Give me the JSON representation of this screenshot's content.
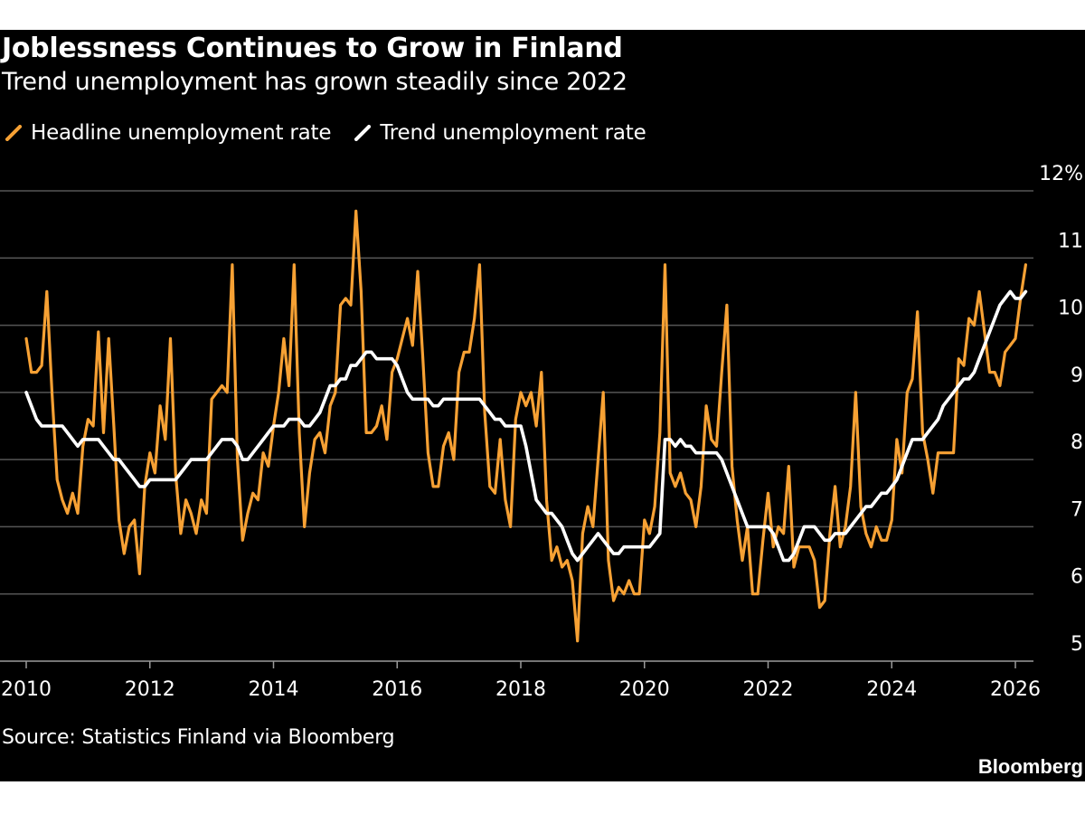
{
  "header": {
    "title": "Joblessness Continues to Grow in Finland",
    "subtitle": "Trend unemployment has grown steadily since 2022"
  },
  "footer": {
    "source": "Source: Statistics Finland via Bloomberg",
    "brand": "Bloomberg"
  },
  "colors": {
    "background": "#000000",
    "headline": "#f7a134",
    "trend": "#ffffff",
    "grid": "#555555",
    "text": "#ffffff"
  },
  "chart_data": {
    "type": "line",
    "title": "Joblessness Continues to Grow in Finland",
    "subtitle": "Trend unemployment has grown steadily since 2022",
    "xlabel": "",
    "ylabel": "%",
    "x_start": 2010.0,
    "x_step_months": 1,
    "xlim": [
      2010,
      2026.5
    ],
    "ylim": [
      5,
      12
    ],
    "y_ticks": [
      5,
      6,
      7,
      8,
      9,
      10,
      11,
      12
    ],
    "y_tick_labels": [
      "5",
      "6",
      "7",
      "8",
      "9",
      "10",
      "11",
      "12%"
    ],
    "x_ticks": [
      2010,
      2012,
      2014,
      2016,
      2018,
      2020,
      2022,
      2024,
      2026
    ],
    "x_tick_labels": [
      "2010",
      "2012",
      "2014",
      "2016",
      "2018",
      "2020",
      "2022",
      "2024",
      "2026"
    ],
    "grid": true,
    "legend_position": "top-left",
    "series": [
      {
        "name": "Headline unemployment rate",
        "color": "#f7a134",
        "values": [
          9.8,
          9.3,
          9.3,
          9.4,
          10.5,
          9.0,
          7.7,
          7.4,
          7.2,
          7.5,
          7.2,
          8.2,
          8.6,
          8.5,
          9.9,
          8.4,
          9.8,
          8.5,
          7.1,
          6.6,
          7.0,
          7.1,
          6.3,
          7.6,
          8.1,
          7.8,
          8.8,
          8.3,
          9.8,
          7.8,
          6.9,
          7.4,
          7.2,
          6.9,
          7.4,
          7.2,
          8.9,
          9.0,
          9.1,
          9.0,
          10.9,
          8.0,
          6.8,
          7.2,
          7.5,
          7.4,
          8.1,
          7.9,
          8.5,
          9.0,
          9.8,
          9.1,
          10.9,
          8.4,
          7.0,
          7.8,
          8.3,
          8.4,
          8.1,
          8.8,
          9.0,
          10.3,
          10.4,
          10.3,
          11.7,
          10.5,
          8.4,
          8.4,
          8.5,
          8.8,
          8.3,
          9.3,
          9.5,
          9.8,
          10.1,
          9.7,
          10.8,
          9.5,
          8.1,
          7.6,
          7.6,
          8.2,
          8.4,
          8.0,
          9.3,
          9.6,
          9.6,
          10.1,
          10.9,
          8.7,
          7.6,
          7.5,
          8.3,
          7.4,
          7.0,
          8.6,
          9.0,
          8.8,
          9.0,
          8.5,
          9.3,
          7.4,
          6.5,
          6.7,
          6.4,
          6.5,
          6.2,
          5.3,
          6.9,
          7.3,
          7.0,
          8.0,
          9.0,
          6.5,
          5.9,
          6.1,
          6.0,
          6.2,
          6.0,
          6.0,
          7.1,
          6.9,
          7.3,
          8.4,
          10.9,
          7.8,
          7.6,
          7.8,
          7.5,
          7.4,
          7.0,
          7.6,
          8.8,
          8.3,
          8.2,
          9.3,
          10.3,
          7.9,
          7.1,
          6.5,
          7.0,
          6.0,
          6.0,
          6.8,
          7.5,
          6.7,
          7.0,
          6.9,
          7.9,
          6.4,
          6.7,
          6.7,
          6.7,
          6.5,
          5.8,
          5.9,
          6.9,
          7.6,
          6.7,
          7.0,
          7.6,
          9.0,
          7.3,
          6.9,
          6.7,
          7.0,
          6.8,
          6.8,
          7.1,
          8.3,
          7.8,
          9.0,
          9.2,
          10.2,
          8.4,
          8.0,
          7.5,
          8.1,
          8.1,
          8.1,
          8.1,
          9.5,
          9.4,
          10.1,
          10.0,
          10.5,
          9.9,
          9.3,
          9.3,
          9.1,
          9.6,
          9.7,
          9.8,
          10.4,
          10.9
        ]
      },
      {
        "name": "Trend unemployment rate",
        "color": "#ffffff",
        "values": [
          9.0,
          8.8,
          8.6,
          8.5,
          8.5,
          8.5,
          8.5,
          8.5,
          8.4,
          8.3,
          8.2,
          8.3,
          8.3,
          8.3,
          8.3,
          8.2,
          8.1,
          8.0,
          8.0,
          7.9,
          7.8,
          7.7,
          7.6,
          7.6,
          7.7,
          7.7,
          7.7,
          7.7,
          7.7,
          7.7,
          7.8,
          7.9,
          8.0,
          8.0,
          8.0,
          8.0,
          8.1,
          8.2,
          8.3,
          8.3,
          8.3,
          8.2,
          8.0,
          8.0,
          8.1,
          8.2,
          8.3,
          8.4,
          8.5,
          8.5,
          8.5,
          8.6,
          8.6,
          8.6,
          8.5,
          8.5,
          8.6,
          8.7,
          8.9,
          9.1,
          9.1,
          9.2,
          9.2,
          9.4,
          9.4,
          9.5,
          9.6,
          9.6,
          9.5,
          9.5,
          9.5,
          9.5,
          9.4,
          9.2,
          9.0,
          8.9,
          8.9,
          8.9,
          8.9,
          8.8,
          8.8,
          8.9,
          8.9,
          8.9,
          8.9,
          8.9,
          8.9,
          8.9,
          8.9,
          8.8,
          8.7,
          8.6,
          8.6,
          8.5,
          8.5,
          8.5,
          8.5,
          8.2,
          7.8,
          7.4,
          7.3,
          7.2,
          7.2,
          7.1,
          7.0,
          6.8,
          6.6,
          6.5,
          6.6,
          6.7,
          6.8,
          6.9,
          6.8,
          6.7,
          6.6,
          6.6,
          6.7,
          6.7,
          6.7,
          6.7,
          6.7,
          6.7,
          6.8,
          6.9,
          8.3,
          8.3,
          8.2,
          8.3,
          8.2,
          8.2,
          8.1,
          8.1,
          8.1,
          8.1,
          8.1,
          8.0,
          7.8,
          7.6,
          7.4,
          7.2,
          7.0,
          7.0,
          7.0,
          7.0,
          7.0,
          6.9,
          6.7,
          6.5,
          6.5,
          6.6,
          6.8,
          7.0,
          7.0,
          7.0,
          6.9,
          6.8,
          6.8,
          6.9,
          6.9,
          6.9,
          7.0,
          7.1,
          7.2,
          7.3,
          7.3,
          7.4,
          7.5,
          7.5,
          7.6,
          7.7,
          7.9,
          8.1,
          8.3,
          8.3,
          8.3,
          8.4,
          8.5,
          8.6,
          8.8,
          8.9,
          9.0,
          9.1,
          9.2,
          9.2,
          9.3,
          9.5,
          9.7,
          9.9,
          10.1,
          10.3,
          10.4,
          10.5,
          10.4,
          10.4,
          10.5
        ]
      }
    ]
  }
}
